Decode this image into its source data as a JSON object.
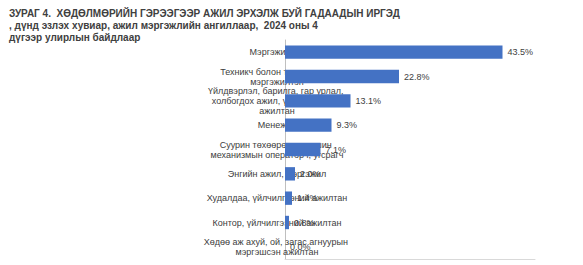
{
  "chart_data": {
    "type": "bar",
    "title": "ЗУРАГ 4.  ХӨДӨЛМӨРИЙН ГЭРЭЭГЭЭР АЖИЛ ЭРХЭЛЖ БУЙ ГАДААДЫН ИРГЭД, дүнд эзлэх хувиар, ажил мэргэжлийн ангиллаар,  2024 оны 4 дүгээр улирлын байдлаар",
    "orientation": "horizontal",
    "categories": [
      "Мэргэжилтэн",
      "Техникч болон туслах, дэд мэргэжилтэн",
      "Үйлдвэрлэл, барилга, гар урлал, холбогдох ажил, үйлчилгээний ажилтан",
      "Менежер",
      "Суурин төхөөрөмж, машин механизмын операторч, угсрагч",
      "Энгийн ажил, мэргэжил",
      "Худалдаа, үйлчилгээний ажилтан",
      "Контор, үйлчилгээний ажилтан",
      "Хөдөө аж ахуй, ой, загас агнуурын мэргэшсэн ажилтан"
    ],
    "values": [
      43.5,
      22.8,
      13.1,
      9.3,
      7.1,
      2.0,
      1.4,
      0.8,
      0.0
    ],
    "value_labels": [
      "43.5%",
      "22.8%",
      "13.1%",
      "9.3%",
      "7.1%",
      "2.0%",
      "1.4%",
      "0.8%",
      "0.0%"
    ],
    "color": "#4472c4",
    "xlim": [
      0,
      50
    ],
    "data_labels": true,
    "tick_labels": "y",
    "grid": false
  }
}
